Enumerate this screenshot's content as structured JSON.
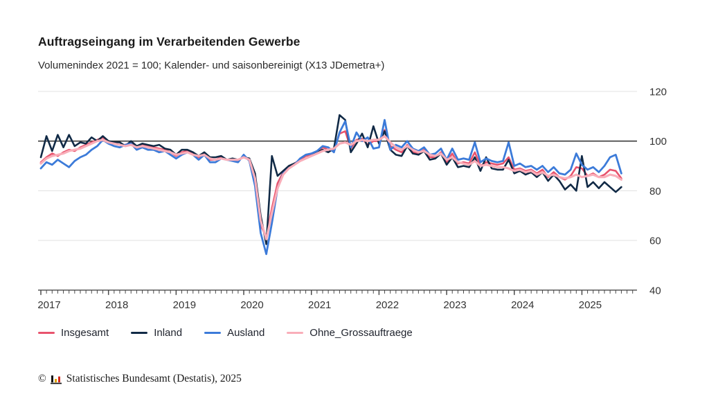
{
  "header": {
    "title": "Auftragseingang im Verarbeitenden Gewerbe",
    "subtitle": "Volumenindex 2021 = 100; Kalender- und saisonbereinigt (X13 JDemetra+)"
  },
  "chart_data": {
    "type": "line",
    "title": "Auftragseingang im Verarbeitenden Gewerbe",
    "subtitle": "Volumenindex 2021 = 100; Kalender- und saisonbereinigt (X13 JDemetra+)",
    "xlabel": "",
    "ylabel": "",
    "frequency": "monthly",
    "x_range": [
      "2017-01",
      "2025-08"
    ],
    "year_labels": [
      "2017",
      "2018",
      "2019",
      "2020",
      "2021",
      "2022",
      "2023",
      "2024",
      "2025"
    ],
    "ylim": [
      40,
      120
    ],
    "yticks": [
      40,
      60,
      80,
      100,
      120
    ],
    "reference_line_y": 100,
    "grid": "horizontal",
    "legend_position": "bottom",
    "colors": {
      "insgesamt": "#e8536d",
      "inland": "#112a46",
      "ausland": "#3c7bd9",
      "ohne_grossauftraege": "#f9aeb9"
    },
    "series": [
      {
        "name": "Insgesamt",
        "color": "#e8536d",
        "values": [
          91.5,
          93.5,
          95,
          94,
          95.5,
          96.5,
          96,
          97.5,
          98.5,
          99.5,
          100.5,
          101.5,
          99.5,
          99,
          98.5,
          98.5,
          99.5,
          97.5,
          98.5,
          98,
          97.5,
          97,
          96.5,
          95.5,
          94,
          95.5,
          96,
          95,
          93.5,
          95,
          92.5,
          92.5,
          93.5,
          92.5,
          92.5,
          92,
          94,
          92.5,
          84,
          66,
          61.5,
          73,
          83,
          87.5,
          89.5,
          91,
          92.5,
          94,
          94.5,
          95.5,
          97.5,
          96.5,
          96,
          103,
          104,
          97,
          100.5,
          101,
          98.5,
          100,
          100,
          104.5,
          98,
          96.5,
          95.5,
          98.5,
          95.5,
          95,
          96.5,
          93.5,
          93.5,
          95.5,
          91.5,
          95,
          91,
          91.5,
          91,
          95.5,
          90,
          91.5,
          91,
          90.5,
          91,
          93.5,
          88.5,
          89,
          88,
          88.5,
          87,
          88.5,
          85.5,
          87.5,
          85.5,
          84.5,
          86,
          89.5,
          89,
          86,
          87,
          85.5,
          86.5,
          88.5,
          88,
          85
        ]
      },
      {
        "name": "Inland",
        "color": "#112a46",
        "values": [
          93.5,
          102,
          96,
          102.5,
          97.5,
          102.5,
          98,
          99.5,
          99,
          101.5,
          100,
          102,
          100,
          99.5,
          99.5,
          98,
          100,
          98,
          99,
          98.5,
          98,
          98.5,
          97,
          96.5,
          94.5,
          96.5,
          96.5,
          95.5,
          94,
          95.5,
          93.5,
          93.5,
          94,
          92.5,
          93,
          92.5,
          93.5,
          93,
          87,
          70,
          58.5,
          94,
          86,
          88,
          90,
          91,
          92,
          93,
          94,
          95.5,
          96.5,
          95.5,
          97,
          110.5,
          108.5,
          95.5,
          99,
          103,
          97.5,
          106,
          99,
          104,
          96.5,
          94.5,
          94,
          98,
          95,
          94.5,
          96,
          92.5,
          93,
          95,
          90.5,
          93.5,
          89.5,
          90,
          89.5,
          93.5,
          88,
          93.5,
          89,
          88.5,
          88.5,
          92.5,
          87,
          88,
          86.5,
          87.5,
          85.5,
          87.5,
          84,
          86.5,
          84,
          80.5,
          82.5,
          80,
          94,
          81.5,
          83.5,
          81,
          83.5,
          81.5,
          79.5,
          81.5
        ]
      },
      {
        "name": "Ausland",
        "color": "#3c7bd9",
        "values": [
          89,
          91.5,
          90.5,
          92.5,
          91,
          89.5,
          92,
          93.5,
          94.5,
          96.5,
          98,
          100.5,
          99,
          98,
          97.5,
          98.5,
          99,
          96.5,
          97.5,
          96.5,
          96.5,
          95.5,
          96,
          94.5,
          93,
          94.5,
          95.5,
          94.5,
          92.5,
          94.5,
          91.5,
          91.5,
          93,
          92.5,
          92,
          91.5,
          94.5,
          92,
          82,
          63,
          54.5,
          67,
          81,
          87,
          89,
          90.5,
          93,
          94.5,
          95,
          96,
          98,
          97.5,
          95.5,
          103.5,
          108,
          97.5,
          103.5,
          100,
          101.5,
          97,
          97.5,
          108.5,
          96.5,
          98.5,
          97.5,
          100,
          97,
          96,
          97.5,
          94.5,
          95,
          97,
          92.5,
          97,
          92.5,
          93,
          92.5,
          99.5,
          91.5,
          93,
          92,
          91.5,
          92,
          99.5,
          90,
          91,
          89.5,
          90,
          88.5,
          90,
          87.5,
          89.5,
          87,
          86.5,
          88.5,
          95,
          90.5,
          88.5,
          89.5,
          87.5,
          90,
          93.5,
          94.5,
          87
        ]
      },
      {
        "name": "Ohne_Grossauftraege",
        "color": "#f9aeb9",
        "values": [
          91,
          93,
          94,
          94.5,
          95,
          96,
          96.5,
          97,
          98,
          99,
          100,
          100.5,
          99.5,
          99,
          98.5,
          98,
          98.5,
          97.5,
          98,
          97.5,
          97,
          96.5,
          96,
          95.5,
          94.5,
          95,
          95.5,
          94.5,
          94,
          94.5,
          93,
          92.5,
          93,
          92.5,
          92.5,
          92.5,
          93.5,
          92.5,
          85,
          68,
          60.5,
          71,
          81,
          86.5,
          89,
          90.5,
          92,
          93,
          94,
          95,
          96,
          96.5,
          97,
          99,
          99.5,
          98.5,
          100,
          100.5,
          100,
          100.5,
          100.5,
          102,
          99.5,
          97.5,
          96.5,
          98,
          96.5,
          95.5,
          96,
          94.5,
          94,
          95,
          92.5,
          93.5,
          91.5,
          91,
          90.5,
          92,
          90,
          90.5,
          90,
          89.5,
          89.5,
          89,
          88,
          88.5,
          87.5,
          88,
          86.5,
          87.5,
          86,
          86.5,
          85.5,
          85,
          85.5,
          86.5,
          85.5,
          86,
          86.5,
          85.5,
          85.5,
          86.5,
          86,
          84.5
        ]
      }
    ]
  },
  "footer": {
    "copyright": "©",
    "source": "Statistisches Bundesamt (Destatis), 2025"
  }
}
